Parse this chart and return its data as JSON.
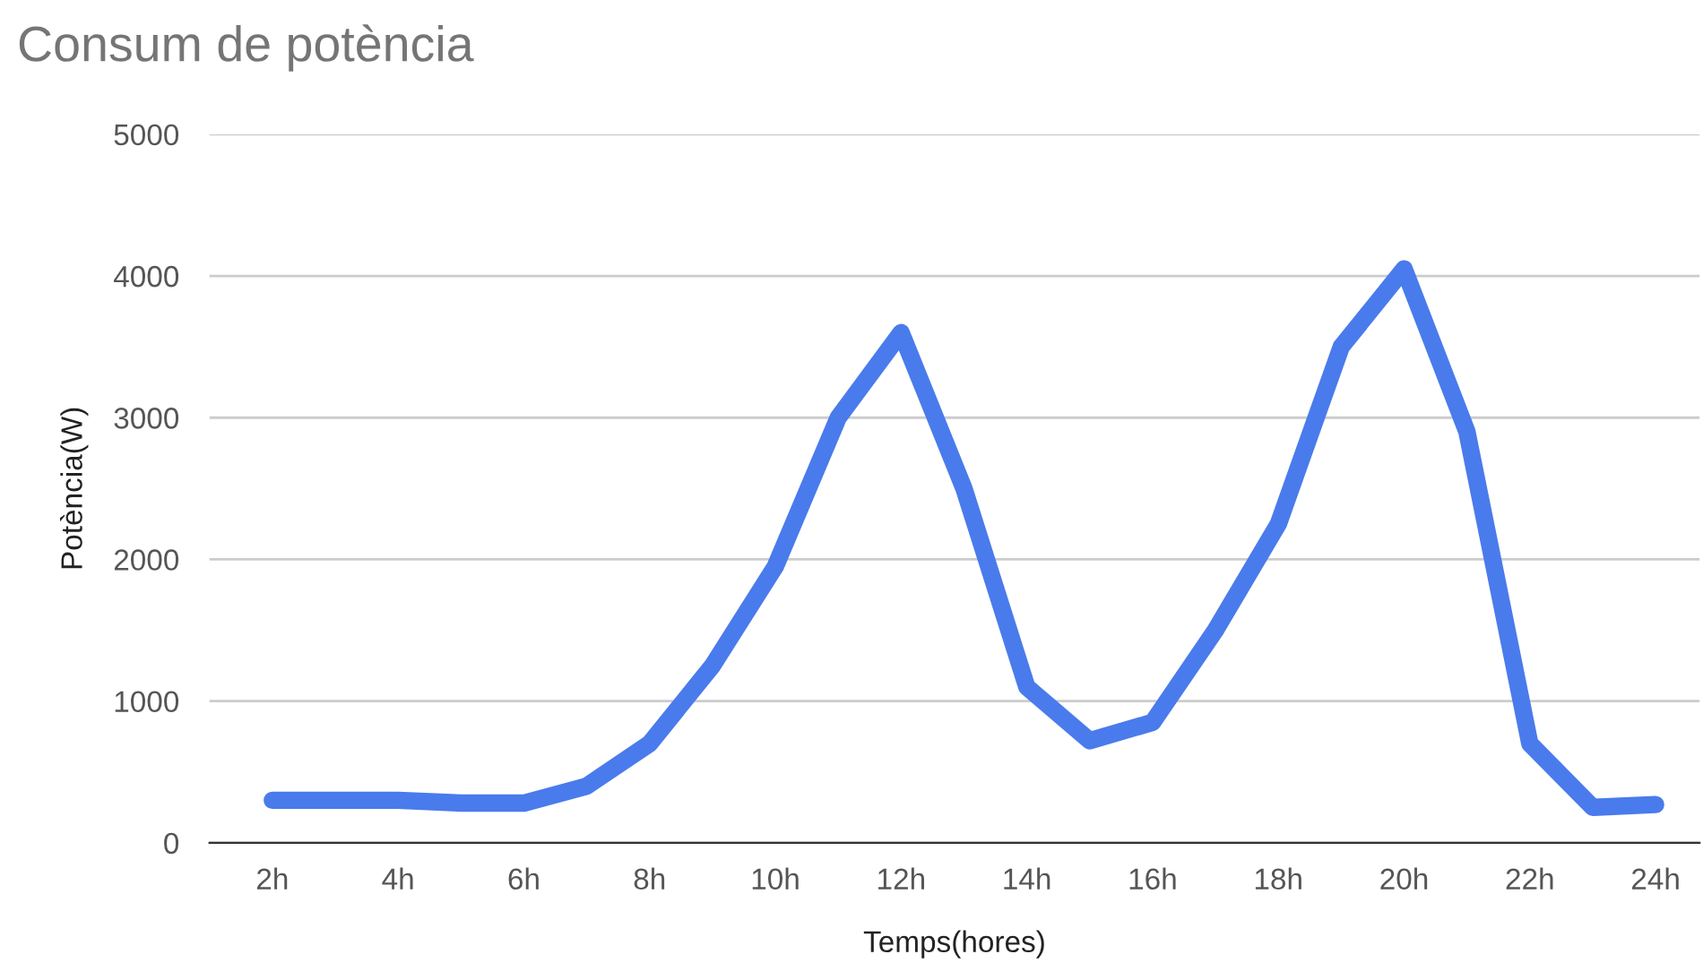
{
  "chart_data": {
    "type": "line",
    "title": "Consum de potència",
    "xlabel": "Temps(hores)",
    "ylabel": "Potència(W)",
    "series": [
      {
        "color": "#4a7bec",
        "x": [
          2,
          3,
          4,
          5,
          6,
          7,
          8,
          9,
          10,
          11,
          12,
          13,
          14,
          15,
          16,
          17,
          18,
          19,
          20,
          21,
          22,
          23,
          24
        ],
        "values": [
          300,
          300,
          300,
          280,
          280,
          400,
          700,
          1250,
          1950,
          3000,
          3600,
          2500,
          1100,
          720,
          850,
          1500,
          2250,
          3500,
          4050,
          2900,
          700,
          250,
          270
        ]
      }
    ],
    "xlim": [
      1,
      24.7
    ],
    "xticks": [
      {
        "value": 2,
        "label": "2h"
      },
      {
        "value": 4,
        "label": "4h"
      },
      {
        "value": 6,
        "label": "6h"
      },
      {
        "value": 8,
        "label": "8h"
      },
      {
        "value": 10,
        "label": "10h"
      },
      {
        "value": 12,
        "label": "12h"
      },
      {
        "value": 14,
        "label": "14h"
      },
      {
        "value": 16,
        "label": "16h"
      },
      {
        "value": 18,
        "label": "18h"
      },
      {
        "value": 20,
        "label": "20h"
      },
      {
        "value": 22,
        "label": "22h"
      },
      {
        "value": 24,
        "label": "24h"
      }
    ],
    "ylim": [
      0,
      5000
    ],
    "yticks": [
      0,
      1000,
      2000,
      3000,
      4000,
      5000
    ],
    "grid": "y",
    "line_style": "solid"
  }
}
